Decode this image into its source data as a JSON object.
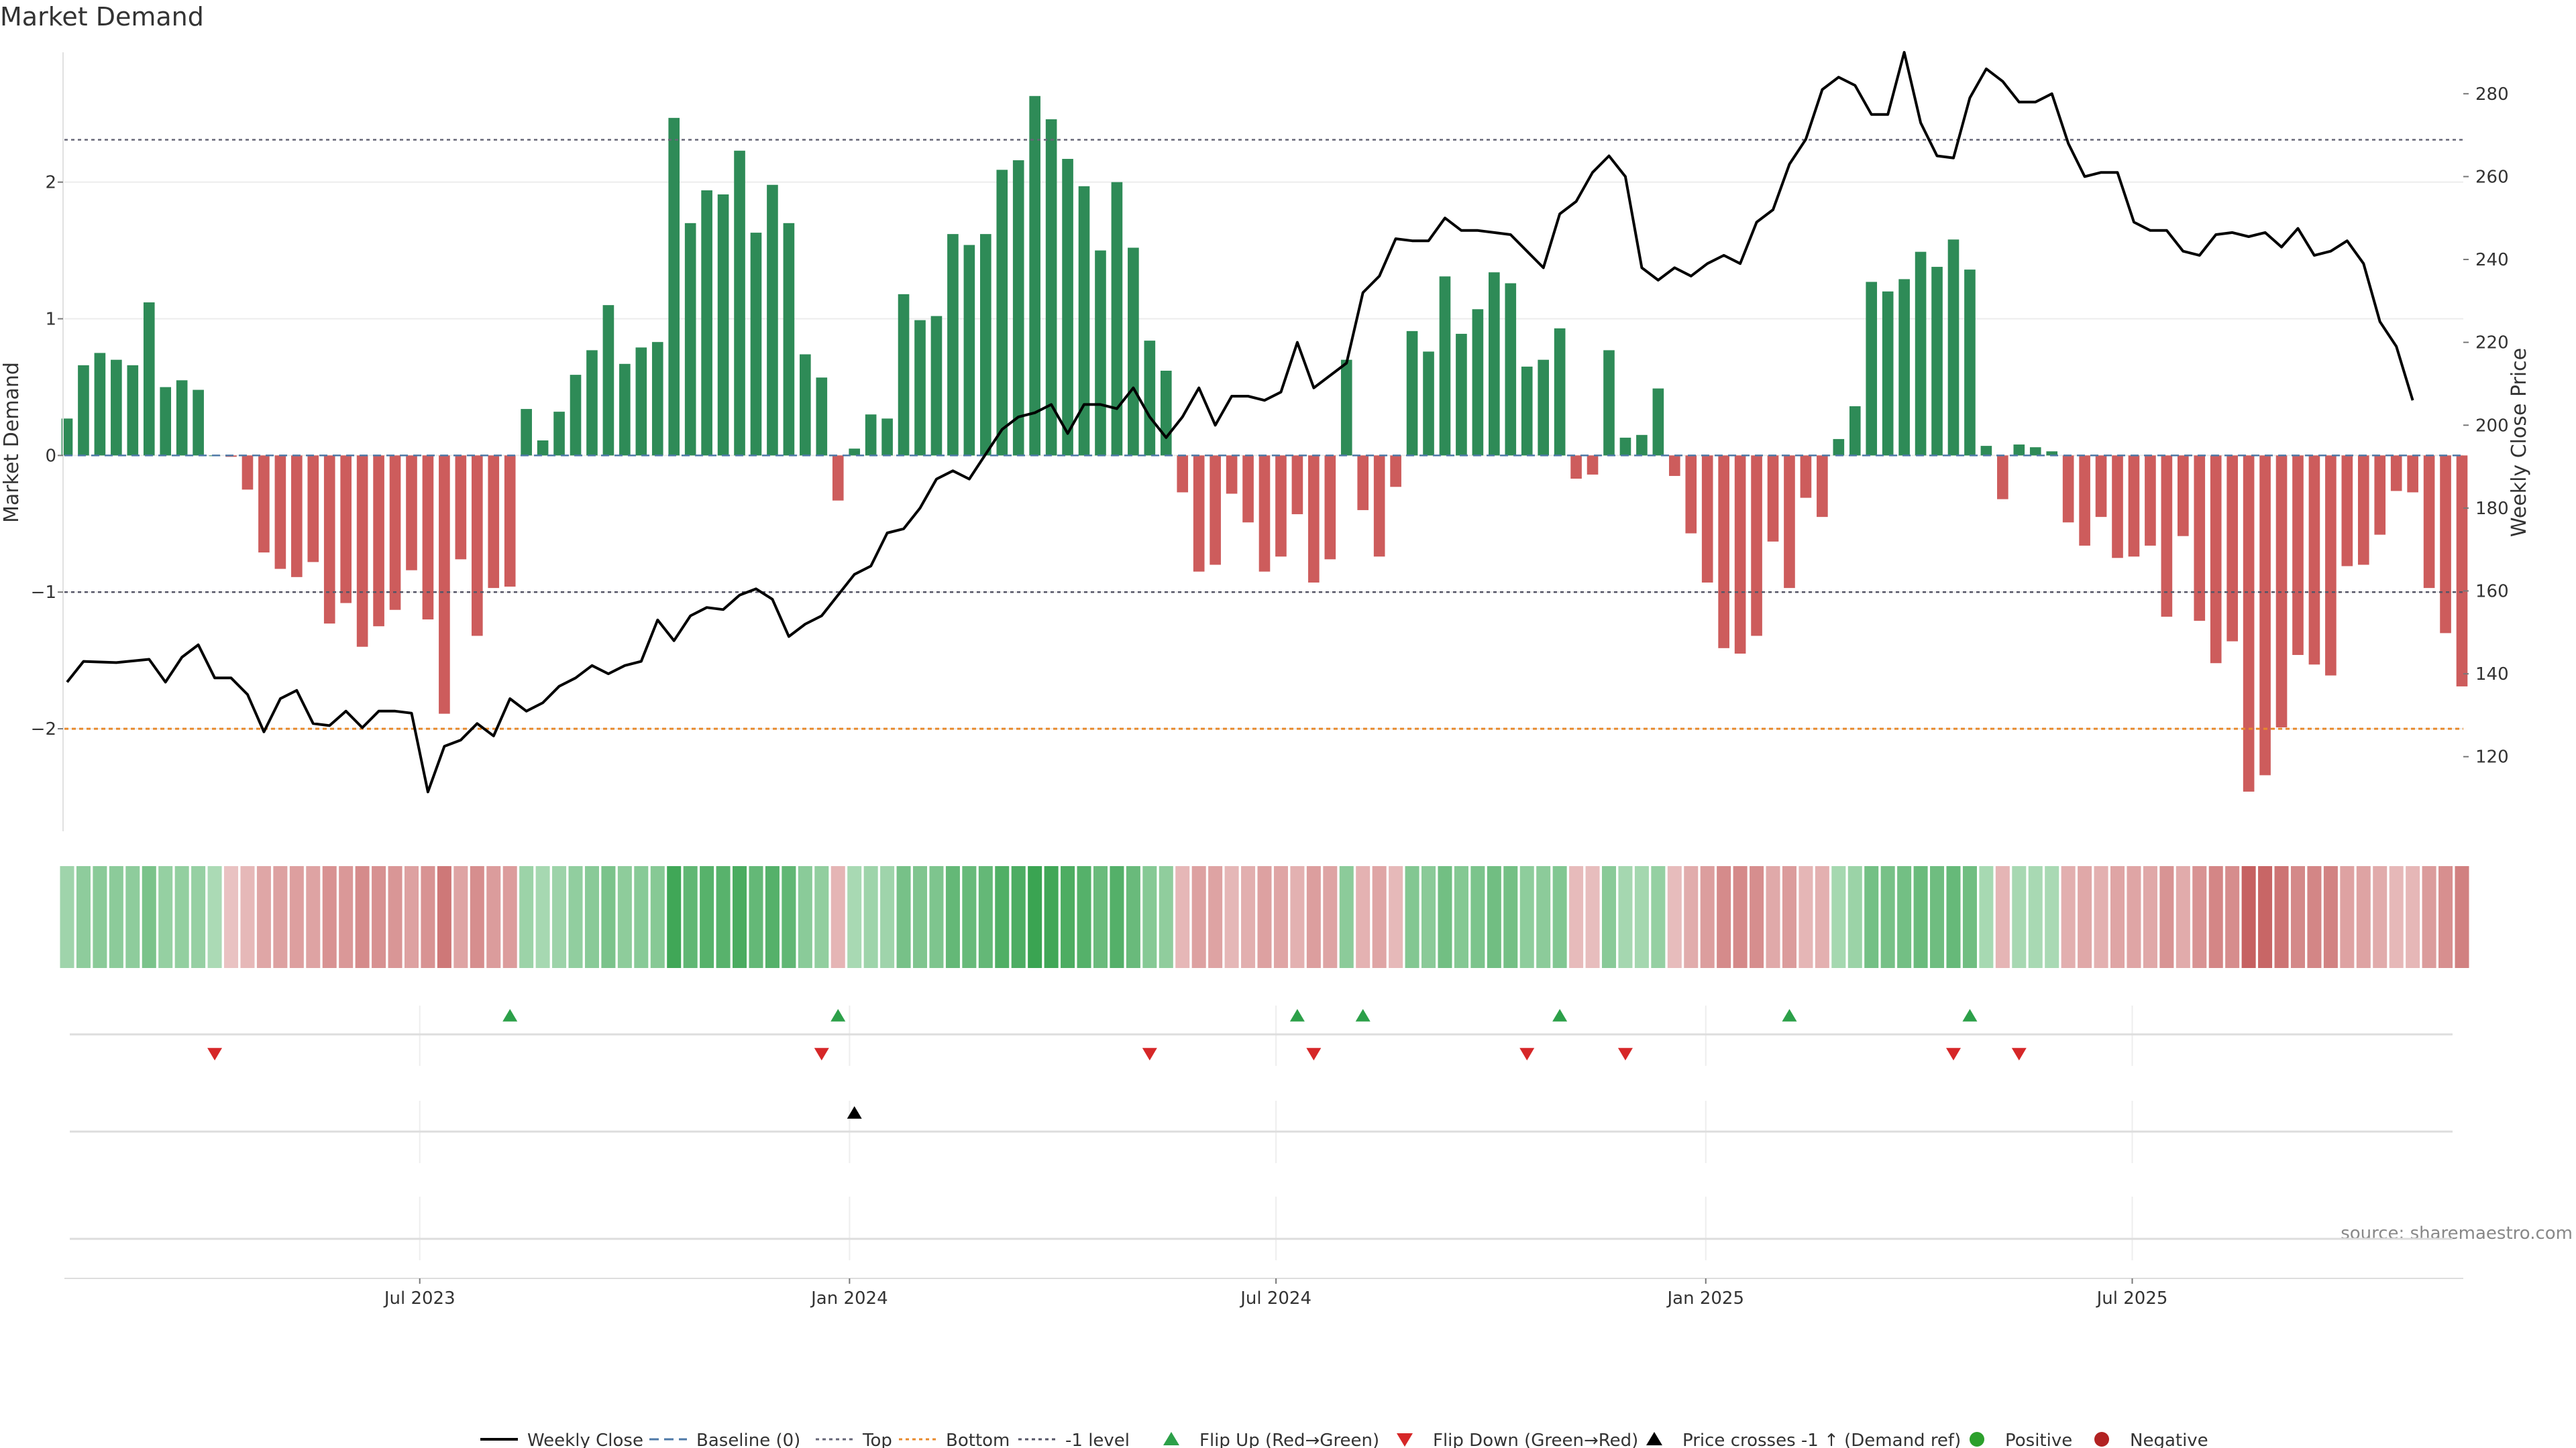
{
  "chart_data": {
    "type": "bar",
    "title": "Market Demand",
    "ylabel": "Market Demand",
    "y2label": "Weekly Close Price",
    "ylim": [
      -2.75,
      2.95
    ],
    "y2lim": [
      102,
      290
    ],
    "yticks": [
      -2,
      -1,
      0,
      1,
      2
    ],
    "yticklabels": [
      "−2",
      "−1",
      "0",
      "1",
      "2"
    ],
    "y2ticks": [
      120,
      140,
      160,
      180,
      200,
      220,
      240,
      260,
      280
    ],
    "xticks": [
      {
        "week": 21.5,
        "label": "Jul 2023"
      },
      {
        "week": 47.7,
        "label": "Jan 2024"
      },
      {
        "week": 73.7,
        "label": "Jul 2024"
      },
      {
        "week": 99.9,
        "label": "Jan 2025"
      },
      {
        "week": 125.9,
        "label": "Jul 2025"
      }
    ],
    "reference_lines": {
      "top": 2.31,
      "bottom": -2.0,
      "minus_one": -1.0,
      "baseline": 0
    },
    "demand": [
      0.27,
      0.66,
      0.75,
      0.7,
      0.66,
      1.12,
      0.5,
      0.55,
      0.48,
      0.0,
      -0.01,
      -0.25,
      -0.71,
      -0.83,
      -0.89,
      -0.78,
      -1.23,
      -1.08,
      -1.4,
      -1.25,
      -1.13,
      -0.84,
      -1.2,
      -1.89,
      -0.76,
      -1.32,
      -0.97,
      -0.96,
      0.34,
      0.11,
      0.32,
      0.59,
      0.77,
      1.1,
      0.67,
      0.79,
      0.83,
      2.47,
      1.7,
      1.94,
      1.91,
      2.23,
      1.63,
      1.98,
      1.7,
      0.74,
      0.57,
      -0.33,
      0.05,
      0.3,
      0.27,
      1.18,
      0.99,
      1.02,
      1.62,
      1.54,
      1.62,
      2.09,
      2.16,
      2.63,
      2.46,
      2.17,
      1.97,
      1.5,
      2.0,
      1.52,
      0.84,
      0.62,
      -0.27,
      -0.85,
      -0.8,
      -0.28,
      -0.49,
      -0.85,
      -0.74,
      -0.43,
      -0.93,
      -0.76,
      0.7,
      -0.4,
      -0.74,
      -0.23,
      0.91,
      0.76,
      1.31,
      0.89,
      1.07,
      1.34,
      1.26,
      0.65,
      0.7,
      0.93,
      -0.17,
      -0.14,
      0.77,
      0.13,
      0.15,
      0.49,
      -0.15,
      -0.57,
      -0.93,
      -1.41,
      -1.45,
      -1.32,
      -0.63,
      -0.97,
      -0.31,
      -0.45,
      0.12,
      0.36,
      1.27,
      1.2,
      1.29,
      1.49,
      1.38,
      1.58,
      1.36,
      0.07,
      -0.32,
      0.08,
      0.06,
      0.03,
      -0.49,
      -0.66,
      -0.45,
      -0.75,
      -0.74,
      -0.66,
      -1.18,
      -0.59,
      -1.21,
      -1.52,
      -1.36,
      -2.46,
      -2.34,
      -1.99,
      -1.46,
      -1.53,
      -1.61,
      -0.81,
      -0.8,
      -0.58,
      -0.26,
      -0.27,
      -0.97,
      -1.3,
      -1.69
    ],
    "weekly_close": [
      [
        0,
        138
      ],
      [
        1,
        143
      ],
      [
        3,
        142.7
      ],
      [
        5,
        143.5
      ],
      [
        6,
        138
      ],
      [
        7,
        144
      ],
      [
        8,
        147
      ],
      [
        9,
        139
      ],
      [
        10,
        139
      ],
      [
        11,
        135
      ],
      [
        12,
        126
      ],
      [
        13,
        134
      ],
      [
        14,
        136
      ],
      [
        15,
        128
      ],
      [
        16,
        127.5
      ],
      [
        17,
        131
      ],
      [
        18,
        127
      ],
      [
        19,
        131
      ],
      [
        20,
        131
      ],
      [
        21,
        130.5
      ],
      [
        22,
        111.5
      ],
      [
        23,
        122.5
      ],
      [
        24,
        124
      ],
      [
        25,
        128
      ],
      [
        26,
        125
      ],
      [
        27,
        134
      ],
      [
        28,
        131
      ],
      [
        29,
        133
      ],
      [
        30,
        137
      ],
      [
        31,
        139
      ],
      [
        32,
        142
      ],
      [
        33,
        140
      ],
      [
        34,
        142
      ],
      [
        35,
        143
      ],
      [
        36,
        153
      ],
      [
        37,
        148
      ],
      [
        38,
        154
      ],
      [
        39,
        156
      ],
      [
        40,
        155.5
      ],
      [
        41,
        159
      ],
      [
        42,
        160.5
      ],
      [
        43,
        158
      ],
      [
        44,
        149
      ],
      [
        45,
        152
      ],
      [
        46,
        154
      ],
      [
        47,
        159
      ],
      [
        48,
        164
      ],
      [
        49,
        166
      ],
      [
        50,
        174
      ],
      [
        51,
        175
      ],
      [
        52,
        180
      ],
      [
        53,
        187
      ],
      [
        54,
        189
      ],
      [
        55,
        187
      ],
      [
        56,
        193
      ],
      [
        57,
        199
      ],
      [
        58,
        202
      ],
      [
        59,
        203
      ],
      [
        60,
        205
      ],
      [
        61,
        198
      ],
      [
        62,
        205
      ],
      [
        63,
        205
      ],
      [
        64,
        204
      ],
      [
        65,
        209
      ],
      [
        66,
        202
      ],
      [
        67,
        197
      ],
      [
        68,
        202
      ],
      [
        69,
        209
      ],
      [
        70,
        200
      ],
      [
        71,
        207
      ],
      [
        72,
        207
      ],
      [
        73,
        206
      ],
      [
        74,
        208
      ],
      [
        75,
        220
      ],
      [
        76,
        209
      ],
      [
        77,
        212
      ],
      [
        78,
        215
      ],
      [
        79,
        232
      ],
      [
        80,
        236
      ],
      [
        81,
        245
      ],
      [
        82,
        244.5
      ],
      [
        83,
        244.5
      ],
      [
        84,
        250
      ],
      [
        85,
        247
      ],
      [
        86,
        247
      ],
      [
        87,
        246.5
      ],
      [
        88,
        246
      ],
      [
        89,
        242
      ],
      [
        90,
        238
      ],
      [
        91,
        251
      ],
      [
        92,
        254
      ],
      [
        93,
        261
      ],
      [
        94,
        265
      ],
      [
        95,
        260
      ],
      [
        96,
        238
      ],
      [
        97,
        235
      ],
      [
        98,
        238
      ],
      [
        99,
        236
      ],
      [
        100,
        239
      ],
      [
        101,
        241
      ],
      [
        102,
        239
      ],
      [
        103,
        249
      ],
      [
        104,
        252
      ],
      [
        105,
        263
      ],
      [
        106,
        269
      ],
      [
        107,
        281
      ],
      [
        108,
        284
      ],
      [
        109,
        282
      ],
      [
        110,
        275
      ],
      [
        111,
        275
      ],
      [
        112,
        290
      ],
      [
        113,
        273
      ],
      [
        114,
        265
      ],
      [
        115,
        264.5
      ],
      [
        116,
        279
      ],
      [
        117,
        286
      ],
      [
        118,
        283
      ],
      [
        119,
        278
      ],
      [
        120,
        278
      ],
      [
        121,
        280
      ],
      [
        122,
        268
      ],
      [
        123,
        260
      ],
      [
        124,
        261
      ],
      [
        125,
        261
      ],
      [
        126,
        249
      ],
      [
        127,
        247
      ],
      [
        128,
        247
      ],
      [
        129,
        242
      ],
      [
        130,
        241
      ],
      [
        131,
        246
      ],
      [
        132,
        246.5
      ],
      [
        133,
        245.5
      ],
      [
        134,
        246.5
      ],
      [
        135,
        243
      ],
      [
        136,
        247.5
      ],
      [
        137,
        241
      ],
      [
        138,
        242
      ],
      [
        139,
        244.5
      ],
      [
        140,
        239
      ],
      [
        141,
        225
      ],
      [
        142,
        219
      ],
      [
        143,
        206
      ]
    ],
    "flip_up_weeks": [
      27,
      47,
      75,
      79,
      91,
      105,
      116
    ],
    "flip_down_weeks": [
      9,
      46,
      66,
      76,
      89,
      95,
      115,
      119
    ],
    "price_cross_weeks": [
      48
    ],
    "source": "source: sharemaestro.com",
    "legend": [
      {
        "label": "Weekly Close",
        "style": "line",
        "color": "#000000"
      },
      {
        "label": "Baseline (0)",
        "style": "dash",
        "color": "#4e79a7"
      },
      {
        "label": "Top",
        "style": "dot",
        "color": "#666677"
      },
      {
        "label": "Bottom",
        "style": "dot",
        "color": "#e8892b"
      },
      {
        "label": "-1 level",
        "style": "dot",
        "color": "#555566"
      },
      {
        "label": "Flip Up (Red→Green)",
        "style": "tri-up",
        "color": "#2ca049"
      },
      {
        "label": "Flip Down (Green→Red)",
        "style": "tri-down",
        "color": "#d62728"
      },
      {
        "label": "Price crosses -1 ↑ (Demand ref)",
        "style": "tri-up",
        "color": "#000000"
      },
      {
        "label": "Positive",
        "style": "circle",
        "color": "#2ca02c"
      },
      {
        "label": "Negative",
        "style": "circle",
        "color": "#b22222"
      }
    ],
    "colors": {
      "positive": "#2e8b57",
      "negative": "#cd5c5c",
      "top": "#666677",
      "bottom": "#e8892b",
      "minus_one": "#555566",
      "baseline": "#4e79a7"
    }
  }
}
